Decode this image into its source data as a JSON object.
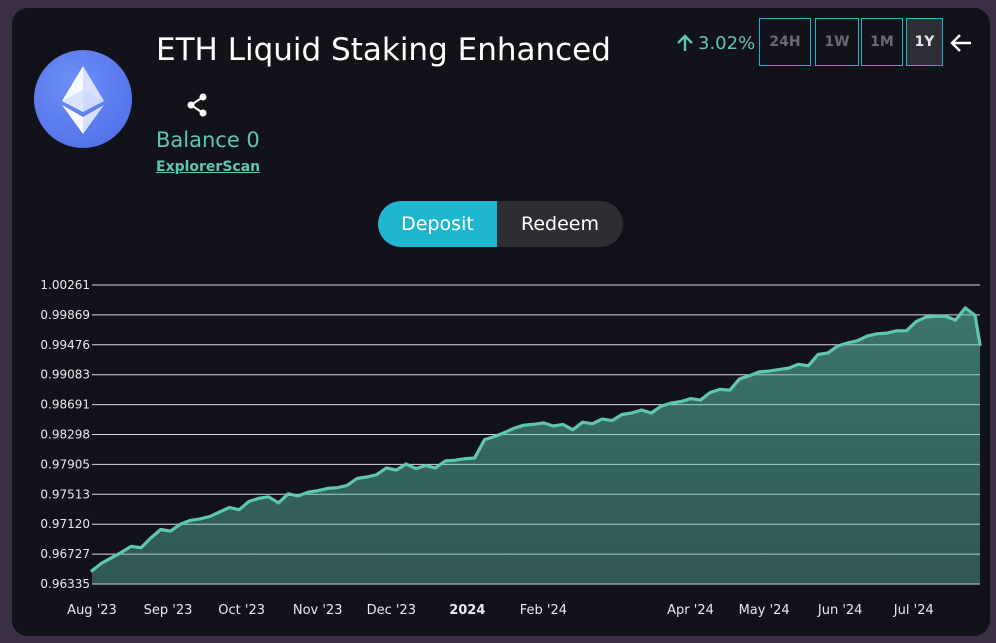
{
  "header": {
    "title": "ETH Liquid Staking Enhanced",
    "balance": "Balance 0",
    "explorer_link": "ExplorerScan",
    "change": "3.02%"
  },
  "ranges": [
    {
      "label": "24H",
      "active": false
    },
    {
      "label": "1W",
      "active": false
    },
    {
      "label": "1M",
      "active": false
    },
    {
      "label": "1Y",
      "active": true
    }
  ],
  "actions": {
    "deposit": "Deposit",
    "redeem": "Redeem"
  },
  "icons": {
    "logo": "ethereum-logo-icon",
    "share": "share-icon",
    "back": "arrow-left-icon",
    "change": "arrow-up-icon"
  },
  "colors": {
    "line": "#5fc6b1",
    "accent": "#1fb6d0",
    "background": "#12121a"
  },
  "chart_data": {
    "type": "area",
    "title": "",
    "xlabel": "",
    "ylabel": "",
    "y_tick_labels": [
      "1.00261",
      "0.99869",
      "0.99476",
      "0.99083",
      "0.98691",
      "0.98298",
      "0.97905",
      "0.97513",
      "0.97120",
      "0.96727",
      "0.96335"
    ],
    "ylim": [
      0.96335,
      1.00261
    ],
    "x_tick_labels": [
      {
        "label": "Aug '23",
        "date": "2023-08-01",
        "bold": false
      },
      {
        "label": "Sep '23",
        "date": "2023-09-01",
        "bold": false
      },
      {
        "label": "Oct '23",
        "date": "2023-10-01",
        "bold": false
      },
      {
        "label": "Nov '23",
        "date": "2023-11-01",
        "bold": false
      },
      {
        "label": "Dec '23",
        "date": "2023-12-01",
        "bold": false
      },
      {
        "label": "2024",
        "date": "2024-01-01",
        "bold": true
      },
      {
        "label": "Feb '24",
        "date": "2024-02-01",
        "bold": false
      },
      {
        "label": "Apr '24",
        "date": "2024-04-01",
        "bold": false
      },
      {
        "label": "May '24",
        "date": "2024-05-01",
        "bold": false
      },
      {
        "label": "Jun '24",
        "date": "2024-06-01",
        "bold": false
      },
      {
        "label": "Jul '24",
        "date": "2024-07-01",
        "bold": false
      }
    ],
    "grid": true,
    "series": [
      {
        "x": [
          "2023-08-01",
          "2023-08-05",
          "2023-08-09",
          "2023-08-13",
          "2023-08-17",
          "2023-08-21",
          "2023-08-25",
          "2023-08-29",
          "2023-09-02",
          "2023-09-06",
          "2023-09-10",
          "2023-09-14",
          "2023-09-18",
          "2023-09-22",
          "2023-09-26",
          "2023-09-30",
          "2023-10-04",
          "2023-10-08",
          "2023-10-12",
          "2023-10-16",
          "2023-10-20",
          "2023-10-24",
          "2023-10-28",
          "2023-11-01",
          "2023-11-05",
          "2023-11-09",
          "2023-11-13",
          "2023-11-17",
          "2023-11-21",
          "2023-11-25",
          "2023-11-29",
          "2023-12-03",
          "2023-12-07",
          "2023-12-11",
          "2023-12-15",
          "2023-12-19",
          "2023-12-23",
          "2023-12-27",
          "2023-12-31",
          "2024-01-04",
          "2024-01-08",
          "2024-01-12",
          "2024-01-16",
          "2024-01-20",
          "2024-01-24",
          "2024-01-28",
          "2024-02-01",
          "2024-02-05",
          "2024-02-09",
          "2024-02-13",
          "2024-02-17",
          "2024-02-21",
          "2024-02-25",
          "2024-02-29",
          "2024-03-04",
          "2024-03-08",
          "2024-03-12",
          "2024-03-16",
          "2024-03-20",
          "2024-03-24",
          "2024-03-28",
          "2024-04-01",
          "2024-04-05",
          "2024-04-09",
          "2024-04-13",
          "2024-04-17",
          "2024-04-21",
          "2024-04-25",
          "2024-04-29",
          "2024-05-03",
          "2024-05-07",
          "2024-05-11",
          "2024-05-15",
          "2024-05-19",
          "2024-05-23",
          "2024-05-27",
          "2024-05-31",
          "2024-06-04",
          "2024-06-08",
          "2024-06-12",
          "2024-06-16",
          "2024-06-20",
          "2024-06-24",
          "2024-06-28",
          "2024-07-02",
          "2024-07-06",
          "2024-07-10",
          "2024-07-14",
          "2024-07-18",
          "2024-07-22",
          "2024-07-26",
          "2024-07-28"
        ],
        "y": [
          0.9651,
          0.9661,
          0.9668,
          0.9675,
          0.9683,
          0.9681,
          0.9694,
          0.9705,
          0.9703,
          0.9712,
          0.9717,
          0.9719,
          0.9722,
          0.9728,
          0.9734,
          0.9731,
          0.9742,
          0.9746,
          0.9748,
          0.974,
          0.9752,
          0.9749,
          0.9754,
          0.9756,
          0.9759,
          0.976,
          0.9763,
          0.9772,
          0.9774,
          0.9777,
          0.9786,
          0.9783,
          0.9791,
          0.9785,
          0.9789,
          0.9786,
          0.9795,
          0.9796,
          0.9798,
          0.9799,
          0.9823,
          0.9827,
          0.9832,
          0.9838,
          0.9842,
          0.9843,
          0.9845,
          0.9841,
          0.9843,
          0.9836,
          0.9846,
          0.9844,
          0.985,
          0.9848,
          0.9856,
          0.9858,
          0.9862,
          0.9858,
          0.9867,
          0.9871,
          0.9873,
          0.9877,
          0.9875,
          0.9885,
          0.9889,
          0.9888,
          0.9903,
          0.9907,
          0.9912,
          0.9913,
          0.9915,
          0.9917,
          0.9922,
          0.992,
          0.9935,
          0.9937,
          0.9946,
          0.995,
          0.9953,
          0.9959,
          0.9962,
          0.9963,
          0.9966,
          0.9966,
          0.9978,
          0.9984,
          0.9985,
          0.9985,
          0.998,
          0.9996,
          0.9986,
          0.9948
        ]
      }
    ]
  }
}
